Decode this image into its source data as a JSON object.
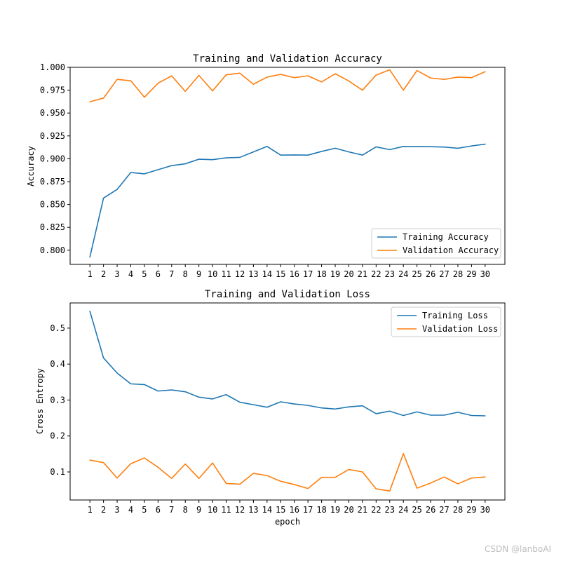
{
  "watermark": "CSDN @lanboAI",
  "colors": {
    "training": "#1f77b4",
    "validation": "#ff7f0e"
  },
  "chart_data": [
    {
      "type": "line",
      "title": "Training and Validation Accuracy",
      "xlabel": "",
      "ylabel": "Accuracy",
      "x": [
        1,
        2,
        3,
        4,
        5,
        6,
        7,
        8,
        9,
        10,
        11,
        12,
        13,
        14,
        15,
        16,
        17,
        18,
        19,
        20,
        21,
        22,
        23,
        24,
        25,
        26,
        27,
        28,
        29,
        30
      ],
      "xticks": [
        "1",
        "2",
        "3",
        "4",
        "5",
        "6",
        "7",
        "8",
        "9",
        "10",
        "11",
        "12",
        "13",
        "14",
        "15",
        "16",
        "17",
        "18",
        "19",
        "20",
        "21",
        "22",
        "23",
        "24",
        "25",
        "26",
        "27",
        "28",
        "29",
        "30"
      ],
      "ylim": [
        0.7845,
        1.0
      ],
      "yticks": [
        0.8,
        0.825,
        0.85,
        0.875,
        0.9,
        0.925,
        0.95,
        0.975,
        1.0
      ],
      "ytick_labels": [
        "0.800",
        "0.825",
        "0.850",
        "0.875",
        "0.900",
        "0.925",
        "0.950",
        "0.975",
        "1.000"
      ],
      "legend_position": "lower-right",
      "series": [
        {
          "name": "Training Accuracy",
          "color": "#1f77b4",
          "values": [
            0.7925,
            0.857,
            0.8665,
            0.885,
            0.8835,
            0.888,
            0.8925,
            0.8945,
            0.8995,
            0.899,
            0.901,
            0.9015,
            0.9075,
            0.9135,
            0.904,
            0.9042,
            0.904,
            0.908,
            0.9115,
            0.9075,
            0.904,
            0.913,
            0.91,
            0.9135,
            0.9133,
            0.9132,
            0.9128,
            0.9115,
            0.914,
            0.916
          ]
        },
        {
          "name": "Validation Accuracy",
          "color": "#ff7f0e",
          "values": [
            0.9623,
            0.9663,
            0.9868,
            0.9853,
            0.9673,
            0.9826,
            0.9907,
            0.9737,
            0.9912,
            0.9742,
            0.9918,
            0.9936,
            0.9815,
            0.9893,
            0.9923,
            0.9887,
            0.9907,
            0.984,
            0.993,
            0.985,
            0.975,
            0.9915,
            0.9973,
            0.975,
            0.9965,
            0.9883,
            0.9868,
            0.9893,
            0.9887,
            0.9952
          ]
        }
      ]
    },
    {
      "type": "line",
      "title": "Training and Validation Loss",
      "xlabel": "epoch",
      "ylabel": "Cross Entropy",
      "x": [
        1,
        2,
        3,
        4,
        5,
        6,
        7,
        8,
        9,
        10,
        11,
        12,
        13,
        14,
        15,
        16,
        17,
        18,
        19,
        20,
        21,
        22,
        23,
        24,
        25,
        26,
        27,
        28,
        29,
        30
      ],
      "xticks": [
        "1",
        "2",
        "3",
        "4",
        "5",
        "6",
        "7",
        "8",
        "9",
        "10",
        "11",
        "12",
        "13",
        "14",
        "15",
        "16",
        "17",
        "18",
        "19",
        "20",
        "21",
        "22",
        "23",
        "24",
        "25",
        "26",
        "27",
        "28",
        "29",
        "30"
      ],
      "ylim": [
        0.022,
        0.57
      ],
      "yticks": [
        0.1,
        0.2,
        0.3,
        0.4,
        0.5
      ],
      "ytick_labels": [
        "0.1",
        "0.2",
        "0.3",
        "0.4",
        "0.5"
      ],
      "legend_position": "upper-right",
      "series": [
        {
          "name": "Training Loss",
          "color": "#1f77b4",
          "values": [
            0.547,
            0.417,
            0.375,
            0.345,
            0.343,
            0.325,
            0.328,
            0.323,
            0.308,
            0.303,
            0.315,
            0.294,
            0.287,
            0.28,
            0.295,
            0.289,
            0.285,
            0.278,
            0.275,
            0.281,
            0.284,
            0.262,
            0.269,
            0.257,
            0.267,
            0.258,
            0.258,
            0.266,
            0.257,
            0.256
          ]
        },
        {
          "name": "Validation Loss",
          "color": "#ff7f0e",
          "values": [
            0.133,
            0.126,
            0.083,
            0.123,
            0.139,
            0.113,
            0.082,
            0.122,
            0.082,
            0.125,
            0.068,
            0.066,
            0.096,
            0.09,
            0.074,
            0.065,
            0.054,
            0.085,
            0.085,
            0.107,
            0.1,
            0.053,
            0.047,
            0.151,
            0.055,
            0.069,
            0.086,
            0.067,
            0.083,
            0.086
          ]
        }
      ]
    }
  ]
}
